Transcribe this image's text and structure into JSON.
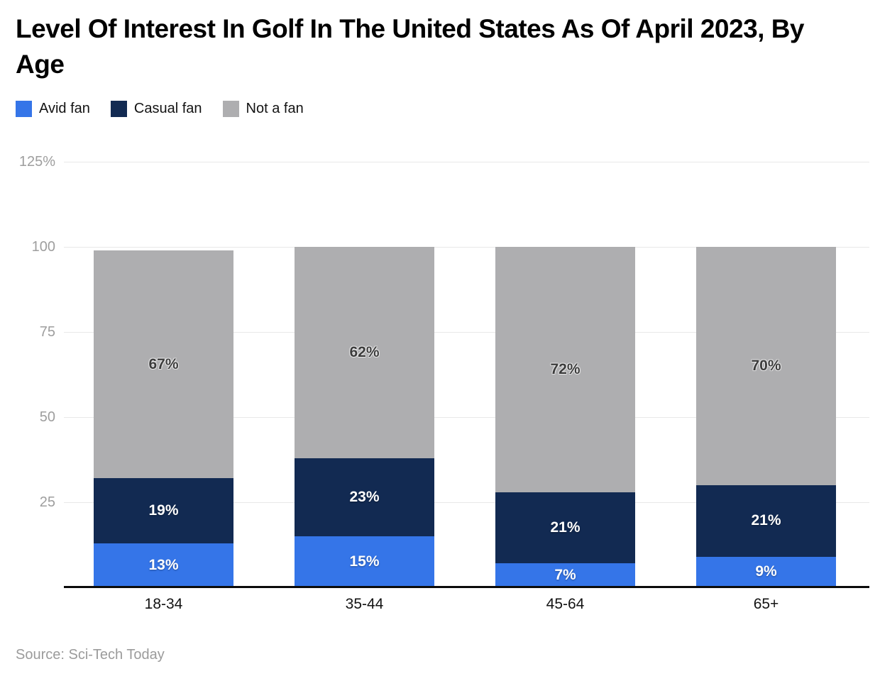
{
  "page": {
    "title": "Level Of Interest In Golf In The United States As Of April 2023, By Age",
    "source": "Source: Sci-Tech Today"
  },
  "colors": {
    "avid_fan": "#3575E8",
    "casual_fan": "#122A52",
    "not_a_fan": "#AEAEB0",
    "gridline": "#E8E8E8",
    "baseline": "#0B0B0B",
    "y_tick_text": "#9E9E9E",
    "x_tick_text": "#131313",
    "label_on_dark": "#FFFFFF",
    "label_on_light": "#3C3C3C",
    "source_text": "#9B9B9B"
  },
  "legend": {
    "items": [
      {
        "label": "Avid fan",
        "color": "#3575E8"
      },
      {
        "label": "Casual fan",
        "color": "#122A52"
      },
      {
        "label": "Not a fan",
        "color": "#AEAEB0"
      }
    ]
  },
  "chart_data": {
    "type": "bar",
    "stacked": true,
    "title": "Level Of Interest In Golf In The United States As Of April 2023, By Age",
    "xlabel": "",
    "ylabel": "",
    "categories": [
      "18-34",
      "35-44",
      "45-64",
      "65+"
    ],
    "series": [
      {
        "name": "Avid fan",
        "color": "#3575E8",
        "label_style": "on-dark",
        "values": [
          13,
          15,
          7,
          9
        ]
      },
      {
        "name": "Casual fan",
        "color": "#122A52",
        "label_style": "on-dark",
        "values": [
          19,
          23,
          21,
          21
        ]
      },
      {
        "name": "Not a fan",
        "color": "#AEAEB0",
        "label_style": "on-light",
        "values": [
          67,
          62,
          72,
          70
        ]
      }
    ],
    "value_suffix": "%",
    "ylim": [
      0,
      125
    ],
    "yticks": [
      {
        "value": 25,
        "label": "25"
      },
      {
        "value": 50,
        "label": "50"
      },
      {
        "value": 75,
        "label": "75"
      },
      {
        "value": 100,
        "label": "100"
      },
      {
        "value": 125,
        "label": "125%"
      }
    ],
    "grid": true,
    "legend_position": "top-left"
  }
}
